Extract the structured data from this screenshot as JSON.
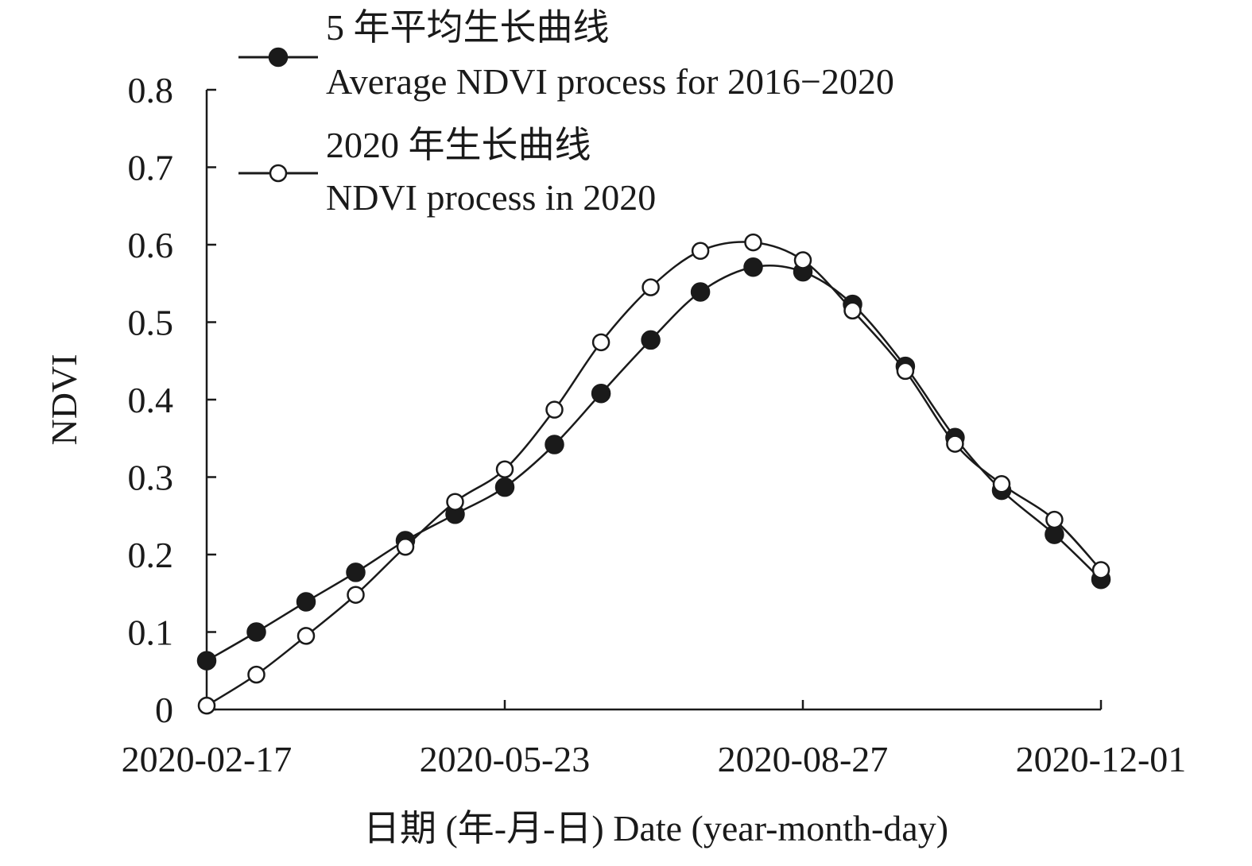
{
  "chart_data": {
    "type": "line",
    "ylabel": "NDVI",
    "xlabel": "日期 (年-月-日) Date (year-month-day)",
    "ylim": [
      0,
      0.8
    ],
    "yticks": [
      "0",
      "0.1",
      "0.2",
      "0.3",
      "0.4",
      "0.5",
      "0.6",
      "0.7",
      "0.8"
    ],
    "xlim": [
      "2020-02-17",
      "2020-12-01"
    ],
    "xticks": [
      "2020-02-17",
      "2020-05-23",
      "2020-08-27",
      "2020-12-01"
    ],
    "grid": false,
    "legend_position": "top",
    "x": [
      "2020-02-17",
      "2020-03-04",
      "2020-03-20",
      "2020-04-05",
      "2020-04-21",
      "2020-05-07",
      "2020-05-23",
      "2020-06-08",
      "2020-06-23",
      "2020-07-09",
      "2020-07-25",
      "2020-08-11",
      "2020-08-27",
      "2020-09-12",
      "2020-09-29",
      "2020-10-15",
      "2020-10-30",
      "2020-11-16",
      "2020-12-01"
    ],
    "series": [
      {
        "name_cn": "5 年平均生长曲线",
        "name": "Average NDVI process for 2016−2020",
        "marker": "filled-circle",
        "values": [
          0.063,
          0.1,
          0.139,
          0.177,
          0.218,
          0.252,
          0.287,
          0.342,
          0.408,
          0.477,
          0.539,
          0.571,
          0.565,
          0.523,
          0.443,
          0.351,
          0.283,
          0.226,
          0.168
        ]
      },
      {
        "name_cn": "2020 年生长曲线",
        "name": "NDVI process in 2020",
        "marker": "open-circle",
        "values": [
          0.005,
          0.045,
          0.095,
          0.148,
          0.21,
          0.268,
          0.31,
          0.387,
          0.474,
          0.545,
          0.592,
          0.603,
          0.58,
          0.515,
          0.437,
          0.343,
          0.291,
          0.245,
          0.18
        ]
      }
    ],
    "colors": {
      "line": "#1a1a1a",
      "axis": "#1a1a1a",
      "marker_fill": "#1a1a1a",
      "open_marker_fill": "#ffffff"
    }
  }
}
